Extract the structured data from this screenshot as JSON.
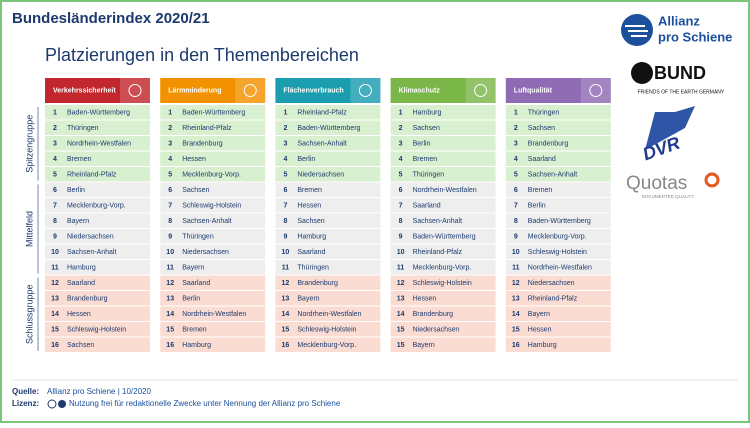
{
  "header": {
    "title": "Bundesländerindex 2020/21",
    "subtitle": "Platzierungen in den Themenbereichen"
  },
  "groups": [
    "Spitzengruppe",
    "Mittelfeld",
    "Schlussgruppe"
  ],
  "columns": [
    {
      "name": "Verkehrssicherheit",
      "color": "#c1272d",
      "rows": [
        [
          1,
          "Baden-Württemberg"
        ],
        [
          2,
          "Thüringen"
        ],
        [
          3,
          "Nordrhein-Westfalen"
        ],
        [
          4,
          "Bremen"
        ],
        [
          5,
          "Rheinland-Pfalz"
        ],
        [
          6,
          "Berlin"
        ],
        [
          7,
          "Mecklenburg-Vorp."
        ],
        [
          8,
          "Bayern"
        ],
        [
          9,
          "Niedersachsen"
        ],
        [
          10,
          "Sachsen-Anhalt"
        ],
        [
          11,
          "Hamburg"
        ],
        [
          12,
          "Saarland"
        ],
        [
          13,
          "Brandenburg"
        ],
        [
          14,
          "Hessen"
        ],
        [
          15,
          "Schleswig-Holstein"
        ],
        [
          16,
          "Sachsen"
        ]
      ]
    },
    {
      "name": "Lärmminderung",
      "color": "#f39200",
      "rows": [
        [
          1,
          "Baden-Württemberg"
        ],
        [
          2,
          "Rheinland-Pfalz"
        ],
        [
          3,
          "Brandenburg"
        ],
        [
          4,
          "Hessen"
        ],
        [
          5,
          "Mecklenburg-Vorp."
        ],
        [
          6,
          "Sachsen"
        ],
        [
          7,
          "Schleswig-Holstein"
        ],
        [
          8,
          "Sachsen-Anhalt"
        ],
        [
          9,
          "Thüringen"
        ],
        [
          10,
          "Niedersachsen"
        ],
        [
          11,
          "Bayern"
        ],
        [
          12,
          "Saarland"
        ],
        [
          13,
          "Berlin"
        ],
        [
          14,
          "Nordrhein-Westfalen"
        ],
        [
          15,
          "Bremen"
        ],
        [
          16,
          "Hamburg"
        ]
      ]
    },
    {
      "name": "Flächenverbrauch",
      "color": "#1b9db0",
      "rows": [
        [
          1,
          "Rheinland-Pfalz"
        ],
        [
          2,
          "Baden-Württemberg"
        ],
        [
          3,
          "Sachsen-Anhalt"
        ],
        [
          4,
          "Berlin"
        ],
        [
          5,
          "Niedersachsen"
        ],
        [
          6,
          "Bremen"
        ],
        [
          7,
          "Hessen"
        ],
        [
          8,
          "Sachsen"
        ],
        [
          9,
          "Hamburg"
        ],
        [
          10,
          "Saarland"
        ],
        [
          11,
          "Thüringen"
        ],
        [
          12,
          "Brandenburg"
        ],
        [
          13,
          "Bayern"
        ],
        [
          14,
          "Nordrhein-Westfalen"
        ],
        [
          15,
          "Schleswig-Holstein"
        ],
        [
          16,
          "Mecklenburg-Vorp."
        ]
      ]
    },
    {
      "name": "Klimaschutz",
      "color": "#7ab648",
      "rows": [
        [
          1,
          "Hamburg"
        ],
        [
          2,
          "Sachsen"
        ],
        [
          3,
          "Berlin"
        ],
        [
          4,
          "Bremen"
        ],
        [
          5,
          "Thüringen"
        ],
        [
          6,
          "Nordrhein-Westfalen"
        ],
        [
          7,
          "Saarland"
        ],
        [
          8,
          "Sachsen-Anhalt"
        ],
        [
          9,
          "Baden-Württemberg"
        ],
        [
          10,
          "Rheinland-Pfalz"
        ],
        [
          11,
          "Mecklenburg-Vorp."
        ],
        [
          12,
          "Schleswig-Holstein"
        ],
        [
          13,
          "Hessen"
        ],
        [
          14,
          "Brandenburg"
        ],
        [
          15,
          "Niedersachsen"
        ],
        [
          15,
          "Bayern"
        ]
      ]
    },
    {
      "name": "Luftqualität",
      "color": "#8e6bb3",
      "rows": [
        [
          1,
          "Thüringen"
        ],
        [
          2,
          "Sachsen"
        ],
        [
          3,
          "Brandenburg"
        ],
        [
          4,
          "Saarland"
        ],
        [
          5,
          "Sachsen-Anhalt"
        ],
        [
          6,
          "Bremen"
        ],
        [
          7,
          "Berlin"
        ],
        [
          8,
          "Baden-Württemberg"
        ],
        [
          9,
          "Mecklenburg-Vorp."
        ],
        [
          10,
          "Schleswig-Holstein"
        ],
        [
          11,
          "Nordrhein-Westfalen"
        ],
        [
          12,
          "Niedersachsen"
        ],
        [
          13,
          "Rheinland-Pfalz"
        ],
        [
          14,
          "Bayern"
        ],
        [
          15,
          "Hessen"
        ],
        [
          16,
          "Hamburg"
        ]
      ]
    }
  ],
  "footer": {
    "source_label": "Quelle:",
    "source": "Allianz pro Schiene | 10/2020",
    "license_label": "Lizenz:",
    "license": "Nutzung frei für redaktionelle Zwecke unter Nennung der Allianz pro Schiene"
  },
  "logos": {
    "allianz": [
      "Allianz",
      "pro Schiene"
    ],
    "bund": "BUND",
    "bund_sub": "FRIENDS OF THE EARTH GERMANY",
    "dvr": "DVR",
    "quotas": "Quotas",
    "quotas_sub": "DOCUMENTED QUALITY"
  }
}
